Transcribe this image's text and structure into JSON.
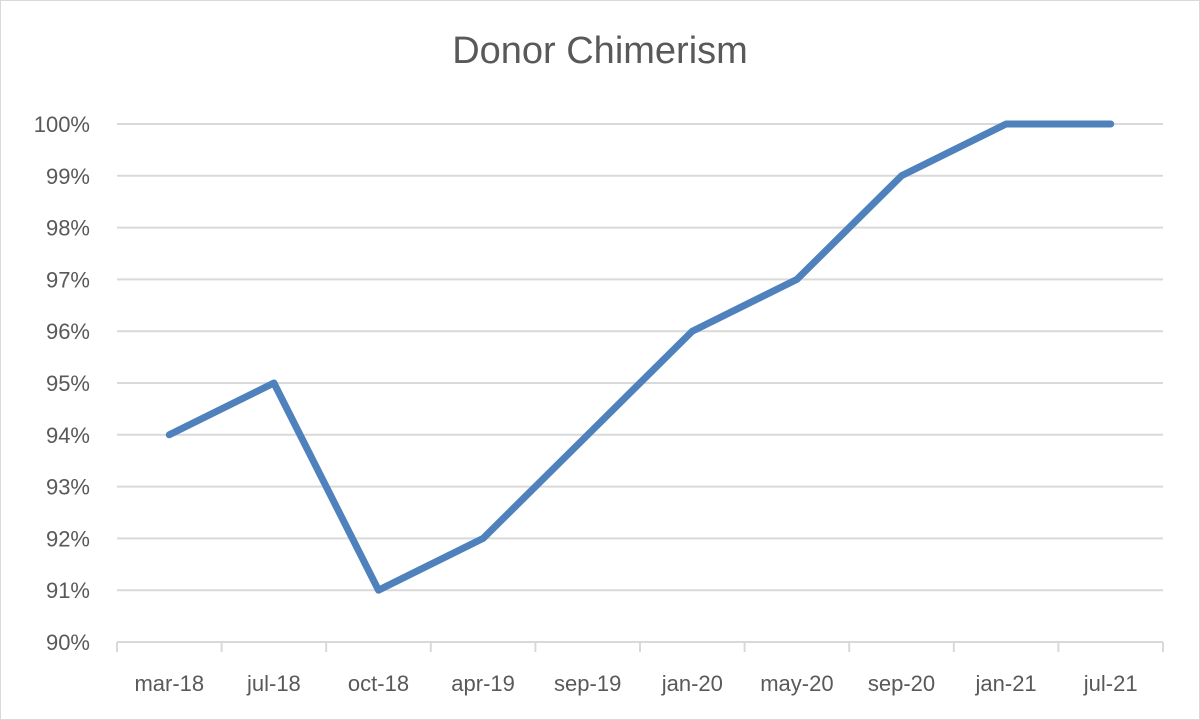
{
  "chart_data": {
    "type": "line",
    "title": "Donor Chimerism",
    "categories": [
      "mar-18",
      "jul-18",
      "oct-18",
      "apr-19",
      "sep-19",
      "jan-20",
      "may-20",
      "sep-20",
      "jan-21",
      "jul-21"
    ],
    "series": [
      {
        "values": [
          94,
          95,
          91,
          92,
          94,
          96,
          97,
          99,
          100,
          100
        ]
      }
    ],
    "yticks": [
      "90%",
      "91%",
      "92%",
      "93%",
      "94%",
      "95%",
      "96%",
      "97%",
      "98%",
      "99%",
      "100%"
    ],
    "ylim": [
      90,
      100
    ],
    "grid": true,
    "legend": "none",
    "colors": {
      "line": "#4f81bd",
      "grid": "#d9d9d9",
      "text": "#595959"
    }
  }
}
